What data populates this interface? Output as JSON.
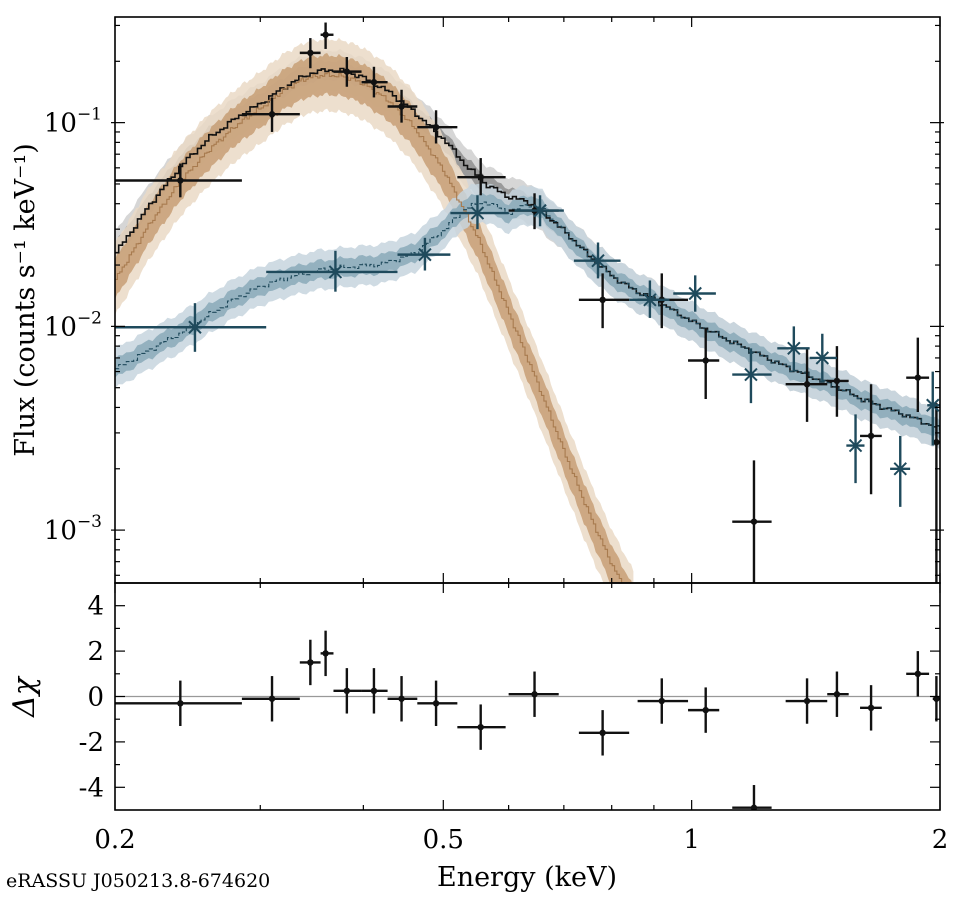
{
  "source_id": "eRASSU J050213.8-674620",
  "colors": {
    "total": "#111111",
    "total_band_outer": "#cfcfcf",
    "total_band_inner": "#8f8f8f",
    "bb": "#a87b4f",
    "bb_band_outer": "#ead9c6",
    "bb_band_inner": "#c79f76",
    "blue": "#1f4a5c",
    "blue_band_outer": "#c7d5de",
    "blue_band_inner": "#8aa9b8",
    "zero_line": "#999999"
  },
  "chart_data": [
    {
      "panel": "spectrum",
      "type": "scatter",
      "xscale": "log",
      "yscale": "log",
      "xlim": [
        0.2,
        2.0
      ],
      "ylim": [
        0.00055,
        0.33
      ],
      "ylabel": "Flux (counts s⁻¹ keV⁻¹)",
      "yticks": [
        {
          "value": 0.1,
          "base": "10",
          "exp": "−1"
        },
        {
          "value": 0.01,
          "base": "10",
          "exp": "−2"
        },
        {
          "value": 0.001,
          "base": "10",
          "exp": "−3"
        }
      ],
      "series": [
        {
          "name": "Data (black, dots)",
          "marker": "dot",
          "points": [
            {
              "x": 0.24,
              "y": 0.052,
              "xlo": 0.2,
              "xhi": 0.285,
              "ylo": 0.043,
              "yhi": 0.063
            },
            {
              "x": 0.31,
              "y": 0.11,
              "xlo": 0.285,
              "xhi": 0.335,
              "ylo": 0.09,
              "yhi": 0.133
            },
            {
              "x": 0.345,
              "y": 0.22,
              "xlo": 0.335,
              "xhi": 0.355,
              "ylo": 0.185,
              "yhi": 0.26
            },
            {
              "x": 0.36,
              "y": 0.27,
              "xlo": 0.355,
              "xhi": 0.368,
              "ylo": 0.23,
              "yhi": 0.31
            },
            {
              "x": 0.382,
              "y": 0.178,
              "xlo": 0.368,
              "xhi": 0.398,
              "ylo": 0.15,
              "yhi": 0.21
            },
            {
              "x": 0.412,
              "y": 0.158,
              "xlo": 0.398,
              "xhi": 0.428,
              "ylo": 0.133,
              "yhi": 0.188
            },
            {
              "x": 0.445,
              "y": 0.12,
              "xlo": 0.428,
              "xhi": 0.465,
              "ylo": 0.1,
              "yhi": 0.145
            },
            {
              "x": 0.49,
              "y": 0.095,
              "xlo": 0.465,
              "xhi": 0.52,
              "ylo": 0.079,
              "yhi": 0.115
            },
            {
              "x": 0.555,
              "y": 0.054,
              "xlo": 0.52,
              "xhi": 0.595,
              "ylo": 0.044,
              "yhi": 0.067
            },
            {
              "x": 0.645,
              "y": 0.037,
              "xlo": 0.6,
              "xhi": 0.69,
              "ylo": 0.03,
              "yhi": 0.045
            },
            {
              "x": 0.78,
              "y": 0.0135,
              "xlo": 0.73,
              "xhi": 0.84,
              "ylo": 0.0098,
              "yhi": 0.0182
            },
            {
              "x": 0.92,
              "y": 0.0135,
              "xlo": 0.86,
              "xhi": 0.99,
              "ylo": 0.0098,
              "yhi": 0.0182
            },
            {
              "x": 1.04,
              "y": 0.0068,
              "xlo": 0.99,
              "xhi": 1.08,
              "ylo": 0.0044,
              "yhi": 0.0098
            },
            {
              "x": 1.19,
              "y": 0.0011,
              "xlo": 1.12,
              "xhi": 1.25,
              "ylo": 0.0005,
              "yhi": 0.0022
            },
            {
              "x": 1.38,
              "y": 0.0052,
              "xlo": 1.3,
              "xhi": 1.46,
              "ylo": 0.0034,
              "yhi": 0.0078
            },
            {
              "x": 1.5,
              "y": 0.0054,
              "xlo": 1.46,
              "xhi": 1.55,
              "ylo": 0.0036,
              "yhi": 0.008
            },
            {
              "x": 1.65,
              "y": 0.0029,
              "xlo": 1.6,
              "xhi": 1.7,
              "ylo": 0.0015,
              "yhi": 0.0052
            },
            {
              "x": 1.88,
              "y": 0.0056,
              "xlo": 1.82,
              "xhi": 1.94,
              "ylo": 0.0038,
              "yhi": 0.0088
            },
            {
              "x": 1.98,
              "y": 0.0027,
              "xlo": 1.96,
              "xhi": 2.0,
              "ylo": 0.00055,
              "yhi": 0.0042
            }
          ]
        },
        {
          "name": "Data (blue, crosses)",
          "marker": "x",
          "points": [
            {
              "x": 0.25,
              "y": 0.0099,
              "xlo": 0.2,
              "xhi": 0.305,
              "ylo": 0.0075,
              "yhi": 0.013
            },
            {
              "x": 0.37,
              "y": 0.0185,
              "xlo": 0.305,
              "xhi": 0.44,
              "ylo": 0.0148,
              "yhi": 0.0235
            },
            {
              "x": 0.475,
              "y": 0.0225,
              "xlo": 0.44,
              "xhi": 0.51,
              "ylo": 0.0188,
              "yhi": 0.0272
            },
            {
              "x": 0.55,
              "y": 0.036,
              "xlo": 0.51,
              "xhi": 0.6,
              "ylo": 0.03,
              "yhi": 0.044
            },
            {
              "x": 0.655,
              "y": 0.037,
              "xlo": 0.61,
              "xhi": 0.7,
              "ylo": 0.031,
              "yhi": 0.044
            },
            {
              "x": 0.77,
              "y": 0.021,
              "xlo": 0.72,
              "xhi": 0.82,
              "ylo": 0.0172,
              "yhi": 0.0258
            },
            {
              "x": 0.89,
              "y": 0.0135,
              "xlo": 0.84,
              "xhi": 0.94,
              "ylo": 0.011,
              "yhi": 0.0168
            },
            {
              "x": 1.01,
              "y": 0.0145,
              "xlo": 0.95,
              "xhi": 1.07,
              "ylo": 0.0118,
              "yhi": 0.0178
            },
            {
              "x": 1.18,
              "y": 0.0058,
              "xlo": 1.12,
              "xhi": 1.25,
              "ylo": 0.0042,
              "yhi": 0.0078
            },
            {
              "x": 1.33,
              "y": 0.0078,
              "xlo": 1.27,
              "xhi": 1.39,
              "ylo": 0.006,
              "yhi": 0.01
            },
            {
              "x": 1.44,
              "y": 0.007,
              "xlo": 1.39,
              "xhi": 1.5,
              "ylo": 0.0053,
              "yhi": 0.0092
            },
            {
              "x": 1.58,
              "y": 0.0026,
              "xlo": 1.54,
              "xhi": 1.62,
              "ylo": 0.0017,
              "yhi": 0.0037
            },
            {
              "x": 1.79,
              "y": 0.002,
              "xlo": 1.74,
              "xhi": 1.84,
              "ylo": 0.0013,
              "yhi": 0.0029
            },
            {
              "x": 1.96,
              "y": 0.0041,
              "xlo": 1.93,
              "xhi": 2.0,
              "ylo": 0.0026,
              "yhi": 0.006
            }
          ]
        },
        {
          "name": "Total model (black)",
          "role": "model",
          "color_key": "total",
          "x": [
            0.2,
            0.22,
            0.24,
            0.26,
            0.28,
            0.3,
            0.32,
            0.34,
            0.36,
            0.38,
            0.4,
            0.43,
            0.46,
            0.5,
            0.53,
            0.56,
            0.6,
            0.63,
            0.66,
            0.7,
            0.75,
            0.8,
            0.85,
            0.9,
            0.95,
            1.0,
            1.1,
            1.2,
            1.3,
            1.4,
            1.5,
            1.6,
            1.7,
            1.8,
            1.9,
            2.0
          ],
          "y": [
            0.023,
            0.04,
            0.062,
            0.085,
            0.106,
            0.125,
            0.15,
            0.172,
            0.182,
            0.178,
            0.165,
            0.14,
            0.112,
            0.082,
            0.062,
            0.05,
            0.043,
            0.041,
            0.036,
            0.029,
            0.022,
            0.0175,
            0.015,
            0.0135,
            0.0118,
            0.0105,
            0.0086,
            0.0073,
            0.0063,
            0.0056,
            0.005,
            0.0044,
            0.004,
            0.0037,
            0.0034,
            0.0031
          ]
        },
        {
          "name": "Soft component (brown)",
          "role": "model",
          "color_key": "bb",
          "x": [
            0.2,
            0.22,
            0.24,
            0.26,
            0.28,
            0.3,
            0.32,
            0.34,
            0.36,
            0.38,
            0.4,
            0.43,
            0.46,
            0.5,
            0.55,
            0.6,
            0.65,
            0.7,
            0.75,
            0.8,
            0.85
          ],
          "y": [
            0.017,
            0.032,
            0.052,
            0.074,
            0.097,
            0.118,
            0.145,
            0.165,
            0.172,
            0.168,
            0.155,
            0.127,
            0.095,
            0.058,
            0.027,
            0.0115,
            0.0052,
            0.0024,
            0.0012,
            0.00067,
            0.00042
          ]
        },
        {
          "name": "Blue model",
          "role": "model",
          "color_key": "blue",
          "x": [
            0.2,
            0.22,
            0.24,
            0.26,
            0.28,
            0.3,
            0.32,
            0.35,
            0.38,
            0.42,
            0.46,
            0.5,
            0.53,
            0.56,
            0.6,
            0.63,
            0.66,
            0.7,
            0.75,
            0.8,
            0.85,
            0.9,
            0.95,
            1.0,
            1.1,
            1.2,
            1.3,
            1.4,
            1.5,
            1.6,
            1.7,
            1.8,
            1.9,
            2.0
          ],
          "y": [
            0.0062,
            0.0077,
            0.0093,
            0.0115,
            0.0138,
            0.0158,
            0.0172,
            0.0188,
            0.0195,
            0.0202,
            0.0228,
            0.03,
            0.038,
            0.041,
            0.036,
            0.04,
            0.037,
            0.029,
            0.0218,
            0.0175,
            0.015,
            0.0134,
            0.0118,
            0.0105,
            0.0086,
            0.0073,
            0.0063,
            0.0056,
            0.005,
            0.0044,
            0.004,
            0.0037,
            0.0034,
            0.0031
          ]
        }
      ]
    },
    {
      "panel": "residuals",
      "type": "scatter",
      "xscale": "log",
      "xlim": [
        0.2,
        2.0
      ],
      "ylim": [
        -5,
        5
      ],
      "ylabel": "Δχ",
      "xlabel": "Energy (keV)",
      "yticks": [
        4,
        2,
        0,
        -2,
        -4
      ],
      "ytick_labels": [
        "4",
        "2",
        "0",
        "-2",
        "-4"
      ],
      "xticks": [
        0.2,
        0.5,
        1,
        2
      ],
      "xtick_labels": [
        "0.2",
        "0.5",
        "1",
        "2"
      ],
      "series": [
        {
          "name": "Residuals (black)",
          "marker": "dot",
          "points": [
            {
              "x": 0.24,
              "y": -0.3,
              "xlo": 0.2,
              "xhi": 0.285
            },
            {
              "x": 0.31,
              "y": -0.1,
              "xlo": 0.285,
              "xhi": 0.335
            },
            {
              "x": 0.345,
              "y": 1.5,
              "xlo": 0.335,
              "xhi": 0.355
            },
            {
              "x": 0.36,
              "y": 1.9,
              "xlo": 0.355,
              "xhi": 0.368
            },
            {
              "x": 0.382,
              "y": 0.25,
              "xlo": 0.368,
              "xhi": 0.398
            },
            {
              "x": 0.412,
              "y": 0.25,
              "xlo": 0.398,
              "xhi": 0.428
            },
            {
              "x": 0.445,
              "y": -0.1,
              "xlo": 0.428,
              "xhi": 0.465
            },
            {
              "x": 0.49,
              "y": -0.3,
              "xlo": 0.465,
              "xhi": 0.52
            },
            {
              "x": 0.555,
              "y": -1.35,
              "xlo": 0.52,
              "xhi": 0.595
            },
            {
              "x": 0.645,
              "y": 0.1,
              "xlo": 0.6,
              "xhi": 0.69
            },
            {
              "x": 0.78,
              "y": -1.6,
              "xlo": 0.73,
              "xhi": 0.84
            },
            {
              "x": 0.92,
              "y": -0.2,
              "xlo": 0.86,
              "xhi": 0.99
            },
            {
              "x": 1.04,
              "y": -0.6,
              "xlo": 0.99,
              "xhi": 1.08
            },
            {
              "x": 1.19,
              "y": -4.9,
              "xlo": 1.12,
              "xhi": 1.25
            },
            {
              "x": 1.38,
              "y": -0.2,
              "xlo": 1.3,
              "xhi": 1.46
            },
            {
              "x": 1.5,
              "y": 0.1,
              "xlo": 1.46,
              "xhi": 1.55
            },
            {
              "x": 1.65,
              "y": -0.5,
              "xlo": 1.6,
              "xhi": 1.7
            },
            {
              "x": 1.88,
              "y": 1.0,
              "xlo": 1.82,
              "xhi": 1.94
            },
            {
              "x": 1.98,
              "y": -0.1,
              "xlo": 1.96,
              "xhi": 2.0
            }
          ]
        }
      ]
    }
  ]
}
